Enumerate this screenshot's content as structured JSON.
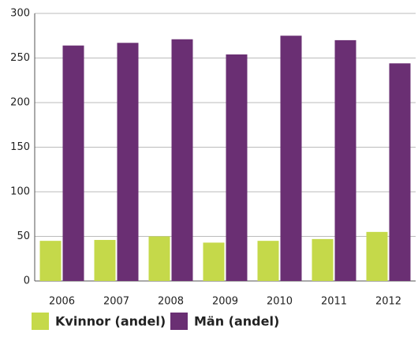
{
  "chart_data": {
    "type": "bar",
    "categories": [
      "2006",
      "2007",
      "2008",
      "2009",
      "2010",
      "2011",
      "2012"
    ],
    "series": [
      {
        "name": "Kvinnor (andel)",
        "color": "#c5d94a",
        "values": [
          45,
          46,
          50,
          43,
          45,
          47,
          55
        ]
      },
      {
        "name": "Män (andel)",
        "color": "#6a2f73",
        "values": [
          264,
          267,
          271,
          254,
          275,
          270,
          244
        ]
      }
    ],
    "ylim": [
      0,
      300
    ],
    "yticks": [
      0,
      50,
      100,
      150,
      200,
      250,
      300
    ],
    "grid": true,
    "legend": "bottom"
  }
}
